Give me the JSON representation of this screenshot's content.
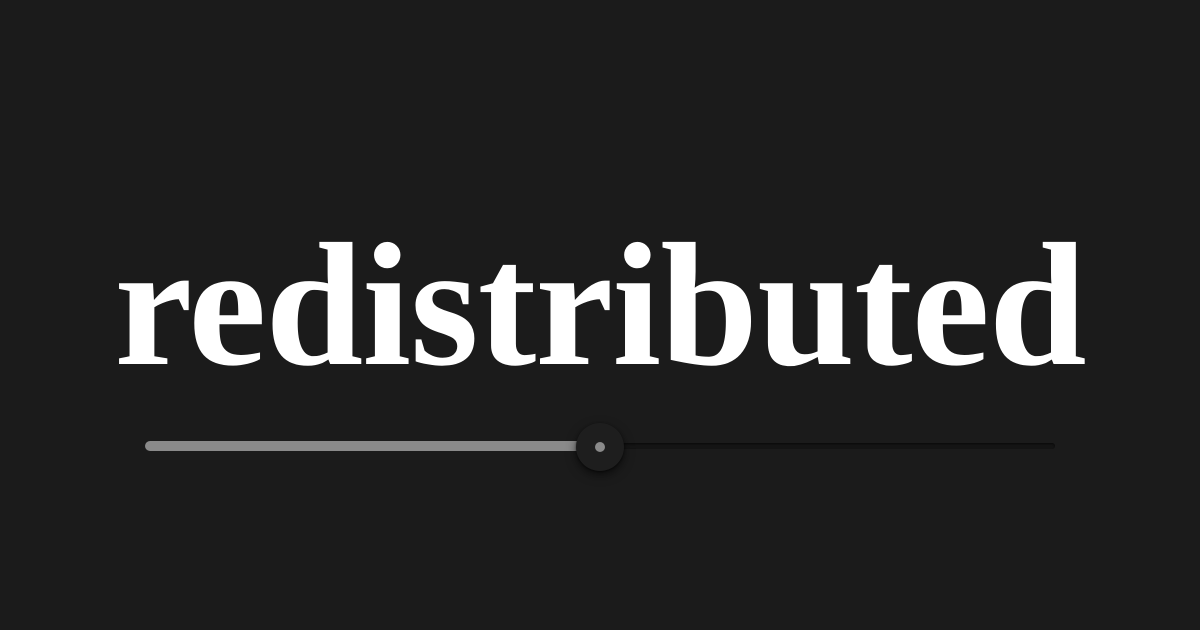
{
  "word": "redistributed",
  "slider": {
    "value": 0.5,
    "fill_color": "#8a8a8a",
    "track_color": "#151515",
    "thumb_color": "#1e1e1e"
  },
  "colors": {
    "background": "#1b1b1b",
    "text": "#ffffff"
  }
}
